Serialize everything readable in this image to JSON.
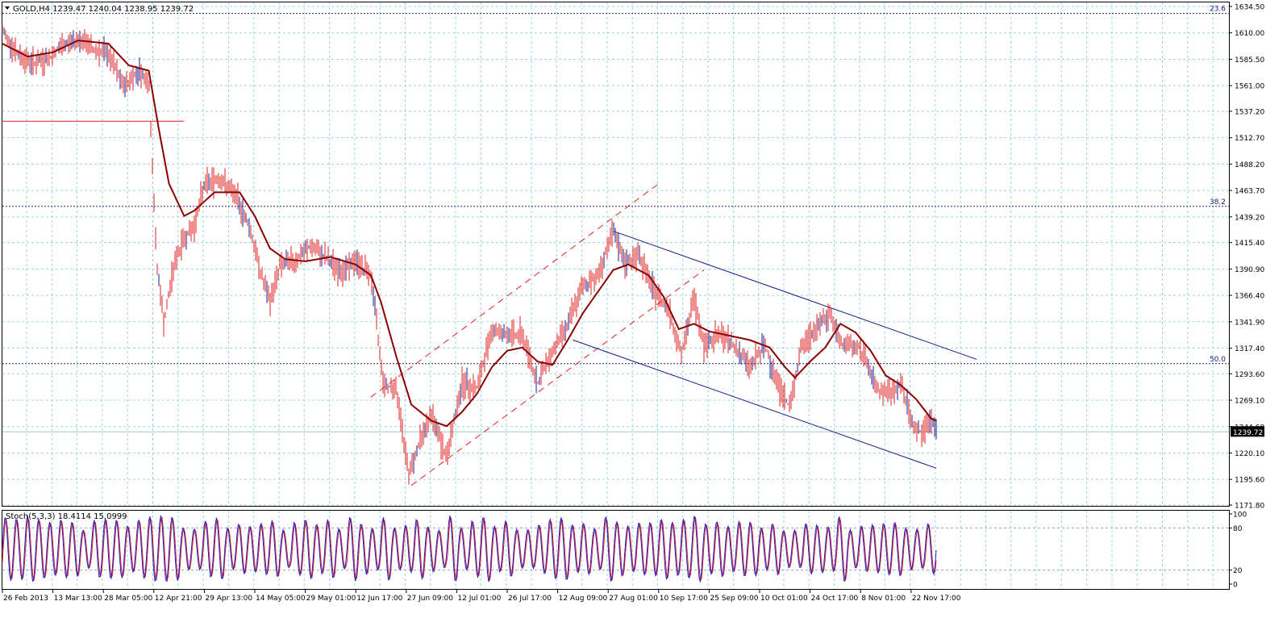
{
  "header": {
    "symbol_line": "GOLD,H4  1239.47 1240.04 1238.95 1239.72",
    "stoch_line": "Stoch(5,3,3) 18.4114 15.0999"
  },
  "colors": {
    "background": "#ffffff",
    "grid": "#9ad7dc",
    "candle": "#e11f1f",
    "candle_alt": "#1d1d8f",
    "moving_average": "#8b0000",
    "fib_line": "#1a1a7a",
    "channel_red": "#e11f1f",
    "channel_blue": "#1a1a8a",
    "stoch_main": "#1d1dcc",
    "stoch_signal": "#e11f1f",
    "axis": "#000000"
  },
  "chart_data": [
    {
      "type": "line",
      "title": "GOLD,H4",
      "ohlc_last": {
        "open": 1239.47,
        "high": 1240.04,
        "low": 1238.95,
        "close": 1239.72
      },
      "current_price_label": "1239.72",
      "y_ticks": [
        1634.5,
        1610.0,
        1585.5,
        1561.0,
        1537.2,
        1512.7,
        1488.2,
        1463.7,
        1439.2,
        1415.4,
        1390.9,
        1366.4,
        1341.9,
        1317.4,
        1293.6,
        1269.1,
        1244.6,
        1220.1,
        1195.6,
        1171.8
      ],
      "ylim": [
        1171.8,
        1634.5
      ],
      "x_tick_labels": [
        "26 Feb 2013",
        "13 Mar 13:00",
        "28 Mar 05:00",
        "12 Apr 21:00",
        "29 Apr 13:00",
        "14 May 05:00",
        "29 May 01:00",
        "12 Jun 17:00",
        "27 Jun 09:00",
        "12 Jul 01:00",
        "26 Jul 17:00",
        "12 Aug 09:00",
        "27 Aug 01:00",
        "10 Sep 17:00",
        "25 Sep 09:00",
        "10 Oct 01:00",
        "24 Oct 17:00",
        "8 Nov 01:00",
        "22 Nov 17:00"
      ],
      "price_series": [
        {
          "x": 0,
          "y": 1612
        },
        {
          "x": 0.3,
          "y": 1590
        },
        {
          "x": 0.6,
          "y": 1582
        },
        {
          "x": 0.9,
          "y": 1586
        },
        {
          "x": 1.2,
          "y": 1598
        },
        {
          "x": 1.5,
          "y": 1605
        },
        {
          "x": 1.8,
          "y": 1595
        },
        {
          "x": 2.1,
          "y": 1590
        },
        {
          "x": 2.4,
          "y": 1560
        },
        {
          "x": 2.7,
          "y": 1575
        },
        {
          "x": 2.9,
          "y": 1565
        },
        {
          "x": 3.05,
          "y": 1400
        },
        {
          "x": 3.2,
          "y": 1340
        },
        {
          "x": 3.4,
          "y": 1395
        },
        {
          "x": 3.6,
          "y": 1420
        },
        {
          "x": 3.8,
          "y": 1430
        },
        {
          "x": 4.0,
          "y": 1470
        },
        {
          "x": 4.3,
          "y": 1475
        },
        {
          "x": 4.6,
          "y": 1460
        },
        {
          "x": 4.9,
          "y": 1430
        },
        {
          "x": 5.1,
          "y": 1390
        },
        {
          "x": 5.3,
          "y": 1360
        },
        {
          "x": 5.5,
          "y": 1395
        },
        {
          "x": 5.8,
          "y": 1398
        },
        {
          "x": 6.1,
          "y": 1412
        },
        {
          "x": 6.4,
          "y": 1402
        },
        {
          "x": 6.7,
          "y": 1388
        },
        {
          "x": 7.0,
          "y": 1398
        },
        {
          "x": 7.3,
          "y": 1385
        },
        {
          "x": 7.55,
          "y": 1285
        },
        {
          "x": 7.8,
          "y": 1280
        },
        {
          "x": 8.05,
          "y": 1200
        },
        {
          "x": 8.25,
          "y": 1230
        },
        {
          "x": 8.5,
          "y": 1255
        },
        {
          "x": 8.8,
          "y": 1215
        },
        {
          "x": 9.1,
          "y": 1285
        },
        {
          "x": 9.4,
          "y": 1280
        },
        {
          "x": 9.7,
          "y": 1335
        },
        {
          "x": 10.0,
          "y": 1330
        },
        {
          "x": 10.3,
          "y": 1330
        },
        {
          "x": 10.6,
          "y": 1285
        },
        {
          "x": 10.9,
          "y": 1315
        },
        {
          "x": 11.2,
          "y": 1340
        },
        {
          "x": 11.5,
          "y": 1375
        },
        {
          "x": 11.8,
          "y": 1385
        },
        {
          "x": 12.1,
          "y": 1425
        },
        {
          "x": 12.35,
          "y": 1395
        },
        {
          "x": 12.6,
          "y": 1405
        },
        {
          "x": 12.9,
          "y": 1370
        },
        {
          "x": 13.2,
          "y": 1355
        },
        {
          "x": 13.45,
          "y": 1310
        },
        {
          "x": 13.7,
          "y": 1365
        },
        {
          "x": 13.9,
          "y": 1320
        },
        {
          "x": 14.2,
          "y": 1330
        },
        {
          "x": 14.5,
          "y": 1320
        },
        {
          "x": 14.8,
          "y": 1300
        },
        {
          "x": 15.1,
          "y": 1320
        },
        {
          "x": 15.4,
          "y": 1280
        },
        {
          "x": 15.6,
          "y": 1262
        },
        {
          "x": 15.8,
          "y": 1315
        },
        {
          "x": 16.1,
          "y": 1335
        },
        {
          "x": 16.4,
          "y": 1350
        },
        {
          "x": 16.6,
          "y": 1320
        },
        {
          "x": 16.9,
          "y": 1320
        },
        {
          "x": 17.1,
          "y": 1310
        },
        {
          "x": 17.3,
          "y": 1280
        },
        {
          "x": 17.6,
          "y": 1275
        },
        {
          "x": 17.8,
          "y": 1285
        },
        {
          "x": 18.0,
          "y": 1250
        },
        {
          "x": 18.2,
          "y": 1238
        },
        {
          "x": 18.4,
          "y": 1250
        },
        {
          "x": 18.5,
          "y": 1240
        }
      ],
      "moving_average": [
        {
          "x": 0,
          "y": 1600
        },
        {
          "x": 0.5,
          "y": 1588
        },
        {
          "x": 1.0,
          "y": 1592
        },
        {
          "x": 1.5,
          "y": 1603
        },
        {
          "x": 2.1,
          "y": 1600
        },
        {
          "x": 2.5,
          "y": 1580
        },
        {
          "x": 2.9,
          "y": 1575
        },
        {
          "x": 3.1,
          "y": 1520
        },
        {
          "x": 3.3,
          "y": 1470
        },
        {
          "x": 3.6,
          "y": 1440
        },
        {
          "x": 3.8,
          "y": 1445
        },
        {
          "x": 4.2,
          "y": 1462
        },
        {
          "x": 4.7,
          "y": 1462
        },
        {
          "x": 5.0,
          "y": 1440
        },
        {
          "x": 5.3,
          "y": 1410
        },
        {
          "x": 5.6,
          "y": 1400
        },
        {
          "x": 6.0,
          "y": 1398
        },
        {
          "x": 6.5,
          "y": 1402
        },
        {
          "x": 7.0,
          "y": 1395
        },
        {
          "x": 7.3,
          "y": 1385
        },
        {
          "x": 7.5,
          "y": 1360
        },
        {
          "x": 7.8,
          "y": 1310
        },
        {
          "x": 8.1,
          "y": 1265
        },
        {
          "x": 8.5,
          "y": 1250
        },
        {
          "x": 8.8,
          "y": 1245
        },
        {
          "x": 9.1,
          "y": 1258
        },
        {
          "x": 9.4,
          "y": 1275
        },
        {
          "x": 9.7,
          "y": 1300
        },
        {
          "x": 10.0,
          "y": 1315
        },
        {
          "x": 10.3,
          "y": 1318
        },
        {
          "x": 10.6,
          "y": 1305
        },
        {
          "x": 10.9,
          "y": 1302
        },
        {
          "x": 11.2,
          "y": 1325
        },
        {
          "x": 11.5,
          "y": 1350
        },
        {
          "x": 11.8,
          "y": 1370
        },
        {
          "x": 12.1,
          "y": 1390
        },
        {
          "x": 12.4,
          "y": 1395
        },
        {
          "x": 12.8,
          "y": 1385
        },
        {
          "x": 13.1,
          "y": 1365
        },
        {
          "x": 13.4,
          "y": 1335
        },
        {
          "x": 13.7,
          "y": 1340
        },
        {
          "x": 14.0,
          "y": 1333
        },
        {
          "x": 14.5,
          "y": 1328
        },
        {
          "x": 14.8,
          "y": 1325
        },
        {
          "x": 15.2,
          "y": 1318
        },
        {
          "x": 15.5,
          "y": 1300
        },
        {
          "x": 15.7,
          "y": 1290
        },
        {
          "x": 16.0,
          "y": 1305
        },
        {
          "x": 16.3,
          "y": 1318
        },
        {
          "x": 16.6,
          "y": 1340
        },
        {
          "x": 16.9,
          "y": 1332
        },
        {
          "x": 17.2,
          "y": 1315
        },
        {
          "x": 17.5,
          "y": 1292
        },
        {
          "x": 17.8,
          "y": 1283
        },
        {
          "x": 18.1,
          "y": 1270
        },
        {
          "x": 18.4,
          "y": 1252
        },
        {
          "x": 18.5,
          "y": 1250
        }
      ],
      "horizontal_lines": [
        {
          "label": "23.6",
          "price": 1628.0,
          "style": "dotted"
        },
        {
          "label": "38.2",
          "price": 1449.0,
          "style": "dotted"
        },
        {
          "label": "50.0",
          "price": 1303.0,
          "style": "dotted"
        },
        {
          "label": "",
          "price": 1528.0,
          "style": "solid",
          "x_end": 3.6
        },
        {
          "label": "",
          "price": 1239.72,
          "style": "solid-light"
        }
      ],
      "trend_channels": [
        {
          "color": "red",
          "style": "dashed",
          "lines": [
            [
              {
                "x": 7.3,
                "y": 1272
              },
              {
                "x": 13.0,
                "y": 1470
              }
            ],
            [
              {
                "x": 8.1,
                "y": 1190
              },
              {
                "x": 13.9,
                "y": 1390
              }
            ]
          ]
        },
        {
          "color": "blue",
          "style": "solid",
          "lines": [
            [
              {
                "x": 12.1,
                "y": 1426
              },
              {
                "x": 19.3,
                "y": 1307
              }
            ],
            [
              {
                "x": 11.3,
                "y": 1325
              },
              {
                "x": 18.5,
                "y": 1206
              }
            ]
          ]
        }
      ],
      "grid": true
    },
    {
      "type": "line",
      "title": "Stoch(5,3,3)",
      "values_last": {
        "main": 18.4114,
        "signal": 15.0999
      },
      "y_ticks": [
        100,
        80,
        20,
        0
      ],
      "ylim": [
        0,
        100
      ],
      "levels": [
        20,
        80
      ],
      "oscillation_cycles": 84,
      "grid": true
    }
  ]
}
